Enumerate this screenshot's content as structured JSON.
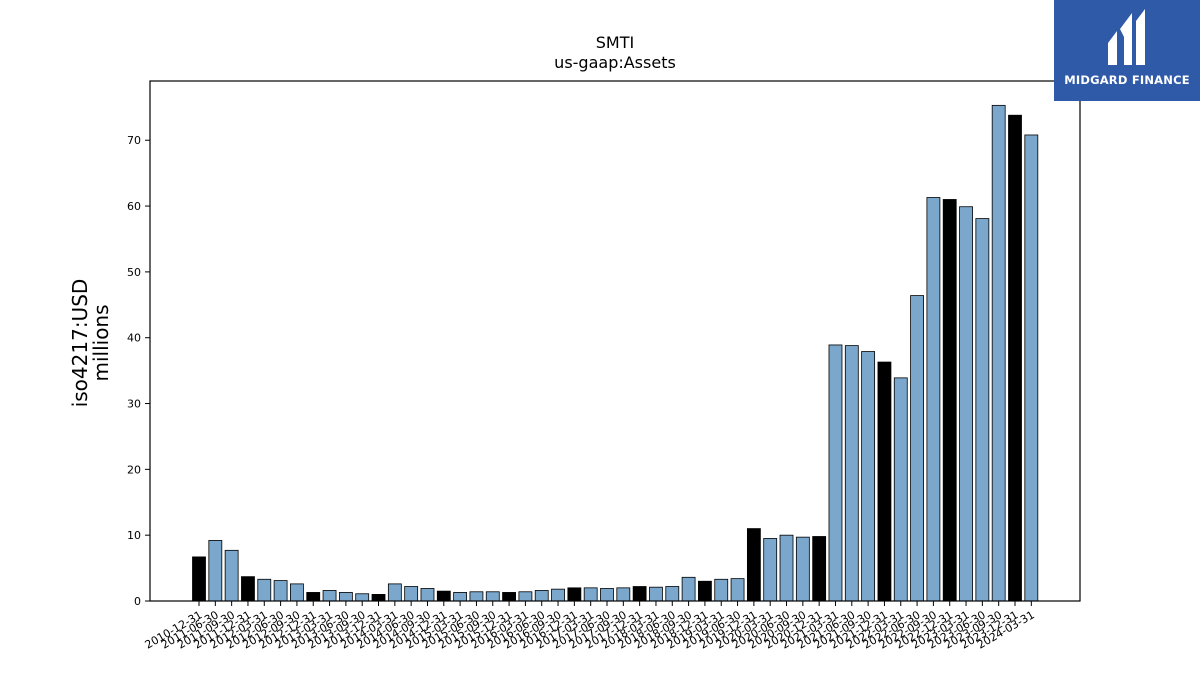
{
  "logo": {
    "text": "MIDGARD FINANCE",
    "background": "#2f5aa8"
  },
  "chart_data": {
    "type": "bar",
    "title": "SMTI",
    "subtitle": "us-gaap:Assets",
    "xlabel": "",
    "ylabel": "iso4217:USD",
    "ylabel2": "millions",
    "ylim": [
      0,
      79
    ],
    "yticks": [
      0,
      10,
      20,
      30,
      40,
      50,
      60,
      70
    ],
    "grid": false,
    "legend": "none",
    "colors": {
      "quarter": "#7ba7cc",
      "annual": "#000000",
      "edge": "#000000"
    },
    "categories": [
      "2010-12-31",
      "2011-06-30",
      "2011-09-30",
      "2011-12-31",
      "2012-03-31",
      "2012-06-30",
      "2012-09-30",
      "2012-12-31",
      "2013-03-31",
      "2013-06-30",
      "2013-09-30",
      "2013-12-31",
      "2014-03-31",
      "2014-06-30",
      "2014-09-30",
      "2014-12-31",
      "2015-03-31",
      "2015-06-30",
      "2015-09-30",
      "2015-12-31",
      "2016-03-31",
      "2016-06-30",
      "2016-09-30",
      "2016-12-31",
      "2017-03-31",
      "2017-06-30",
      "2017-09-30",
      "2017-12-31",
      "2018-03-31",
      "2018-06-30",
      "2018-09-30",
      "2018-12-31",
      "2019-03-31",
      "2019-06-30",
      "2019-12-31",
      "2020-03-31",
      "2020-06-30",
      "2020-09-30",
      "2020-12-31",
      "2021-03-31",
      "2021-06-30",
      "2021-09-30",
      "2021-12-31",
      "2022-03-31",
      "2022-06-30",
      "2022-09-30",
      "2022-12-31",
      "2023-03-31",
      "2023-06-30",
      "2023-09-30",
      "2023-12-31",
      "2024-03-31"
    ],
    "values": [
      6.7,
      9.2,
      7.7,
      3.7,
      3.3,
      3.1,
      2.6,
      1.3,
      1.6,
      1.3,
      1.1,
      1.0,
      2.6,
      2.2,
      1.9,
      1.5,
      1.3,
      1.4,
      1.4,
      1.3,
      1.4,
      1.6,
      1.8,
      2.0,
      2.0,
      1.9,
      2.0,
      2.2,
      2.1,
      2.2,
      3.6,
      3.0,
      3.3,
      3.4,
      11.0,
      9.5,
      10.0,
      9.7,
      9.8,
      38.9,
      38.8,
      37.9,
      36.3,
      33.9,
      46.4,
      61.3,
      61.0,
      59.9,
      58.1,
      75.3,
      73.8,
      70.8
    ],
    "annual": [
      true,
      false,
      false,
      true,
      false,
      false,
      false,
      true,
      false,
      false,
      false,
      true,
      false,
      false,
      false,
      true,
      false,
      false,
      false,
      true,
      false,
      false,
      false,
      true,
      false,
      false,
      false,
      true,
      false,
      false,
      false,
      true,
      false,
      false,
      true,
      false,
      false,
      false,
      true,
      false,
      false,
      false,
      true,
      false,
      false,
      false,
      true,
      false,
      false,
      false,
      true,
      false
    ]
  }
}
